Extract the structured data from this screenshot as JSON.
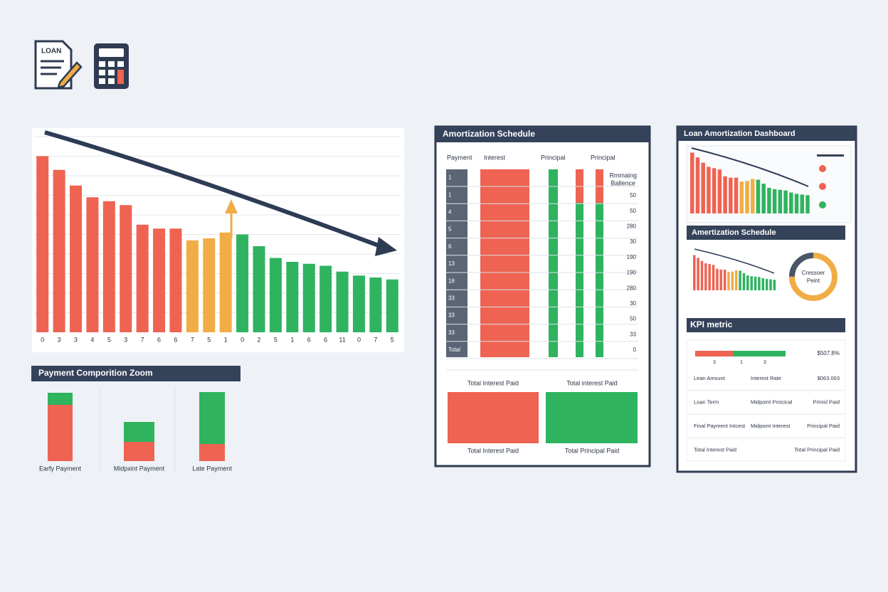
{
  "icons": {
    "doc_label": "LOAN"
  },
  "main_chart": {
    "type": "bar",
    "categories": [
      "0",
      "3",
      "3",
      "4",
      "5",
      "3",
      "7",
      "6",
      "6",
      "7",
      "5",
      "1",
      "0",
      "2",
      "5",
      "1",
      "6",
      "6",
      "11",
      "0",
      "7",
      "5"
    ],
    "values": [
      9.0,
      8.3,
      7.5,
      6.9,
      6.7,
      6.5,
      5.5,
      5.3,
      5.3,
      4.7,
      4.8,
      5.1,
      5.0,
      4.4,
      3.8,
      3.6,
      3.5,
      3.4,
      3.1,
      2.9,
      2.8,
      2.7
    ],
    "colors": [
      "#ee6352",
      "#ee6352",
      "#ee6352",
      "#ee6352",
      "#ee6352",
      "#ee6352",
      "#ee6352",
      "#ee6352",
      "#ee6352",
      "#f0ad45",
      "#f0ad45",
      "#f0ad45",
      "#2fb35f",
      "#2fb35f",
      "#2fb35f",
      "#2fb35f",
      "#2fb35f",
      "#2fb35f",
      "#2fb35f",
      "#2fb35f",
      "#2fb35f",
      "#2fb35f"
    ],
    "ylim": [
      0,
      10
    ]
  },
  "composition": {
    "type": "stacked_bar",
    "title": "Payment Comporition Zoom",
    "categories": [
      "Earfy Payment",
      "Midpxint Payment",
      "Late Payment"
    ],
    "series": [
      {
        "color": "#ee6352",
        "values": [
          79,
          27,
          24
        ]
      },
      {
        "color": "#2fb35f",
        "values": [
          17,
          28,
          73
        ]
      }
    ],
    "ylim": [
      0,
      100
    ]
  },
  "schedule": {
    "title": "Amortization Schedule",
    "headers": [
      "Payment",
      "Interest",
      "Principal",
      "Principal"
    ],
    "balance_header": [
      "Rmmaing",
      "Ballence"
    ],
    "payments": [
      "1",
      "1",
      "4",
      "5",
      "6",
      "13",
      "18",
      "33",
      "33",
      "33",
      "Total"
    ],
    "balances": [
      "50",
      "50",
      "280",
      "30",
      "190",
      "190",
      "280",
      "30",
      "50",
      "33",
      "0"
    ],
    "totals_top": [
      "Total Interest Paid",
      "Total interest Paid"
    ],
    "totals_bottom": [
      "Total Interest Paid",
      "Total Principal Paid"
    ]
  },
  "dashboard": {
    "title": "Loan Amortization Dashboard",
    "schedule_title": "Amertization Schedule",
    "donut": {
      "label": [
        "Cressoer",
        "Peint"
      ],
      "values": [
        75,
        25
      ],
      "colors": [
        "#f0ad45",
        "#4a5568"
      ]
    },
    "kpi": {
      "title": "KPI metric",
      "bar": [
        53,
        74
      ],
      "bar_colors": [
        "#ee6352",
        "#2fb35f"
      ],
      "bar_labels": [
        "3",
        "1",
        "3"
      ],
      "value": "$507.8%",
      "rows": [
        [
          "Lean Amsunt",
          "Interest Rate",
          "$063.003"
        ],
        [
          "Loan Term",
          "Midpoint Pmicical",
          "Prinisl Paid"
        ],
        [
          "Final Payment Intcest",
          "Midpoint Interest",
          "Principal Paid"
        ],
        [
          "Total Interest Paid",
          "Total Principal Paid"
        ]
      ]
    }
  }
}
